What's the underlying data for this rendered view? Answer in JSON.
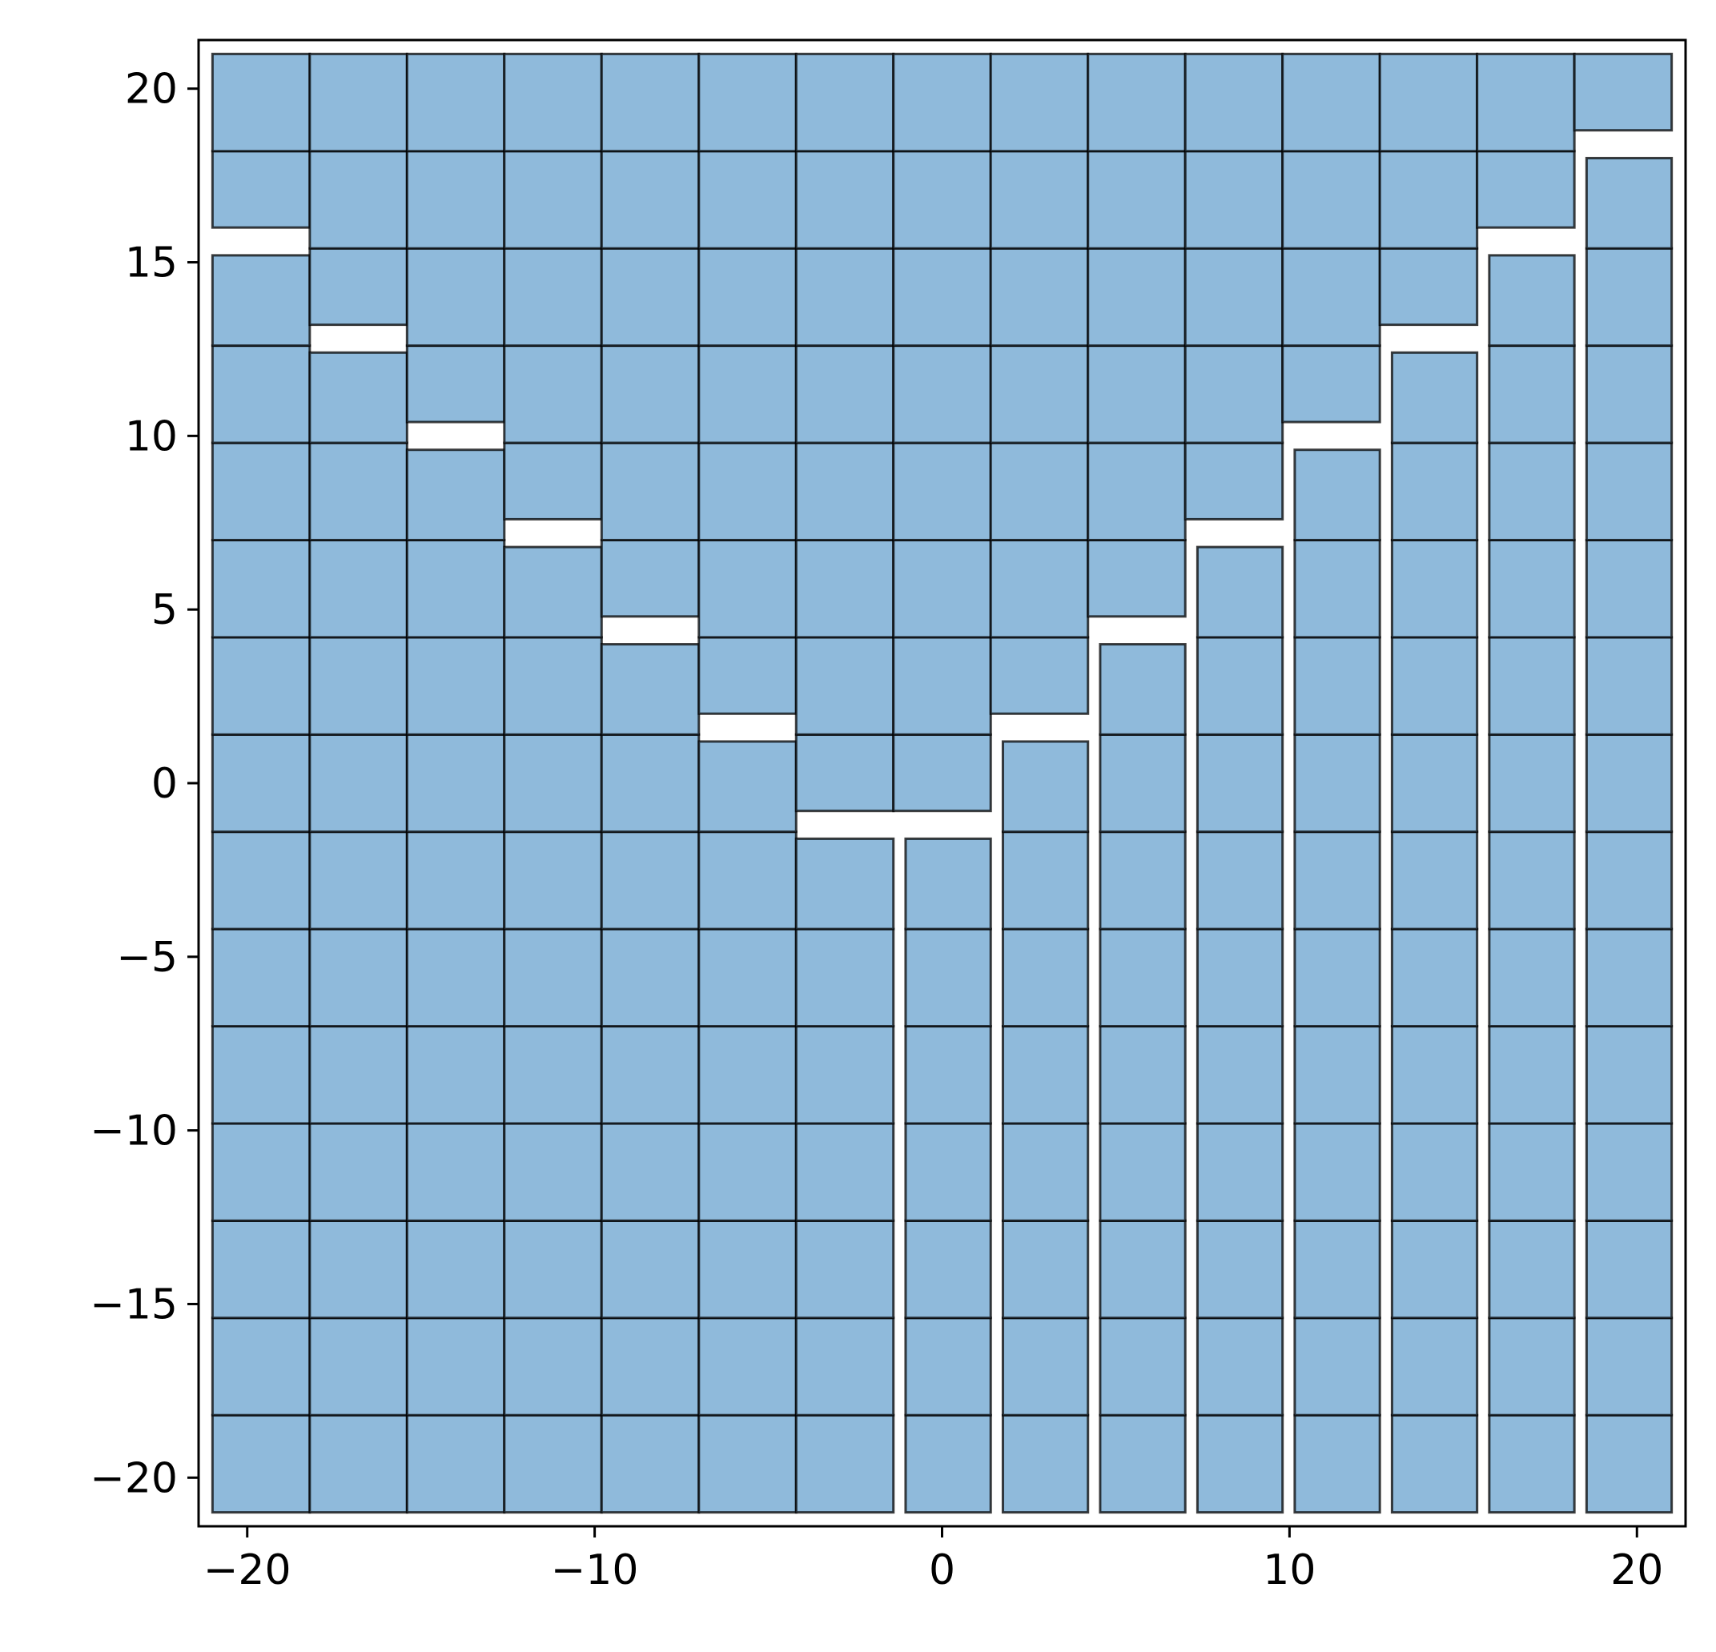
{
  "chart_data": {
    "type": "heatmap",
    "title": "",
    "xlabel": "",
    "ylabel": "",
    "xlim": [
      -21.4,
      21.4
    ],
    "ylim": [
      -21.4,
      21.4
    ],
    "xticks": [
      -20,
      -10,
      0,
      10,
      20
    ],
    "yticks": [
      -20,
      -15,
      -10,
      -5,
      0,
      5,
      10,
      15,
      20
    ],
    "xtick_labels": [
      "−20",
      "−10",
      "0",
      "10",
      "20"
    ],
    "ytick_labels": [
      "−20",
      "−15",
      "−10",
      "−5",
      "0",
      "5",
      "10",
      "15",
      "20"
    ],
    "grid": false,
    "legend": "none",
    "fill_color": "#8fbadb",
    "edge_color": "#000000",
    "background_color": "#ffffff",
    "cell_extent": [
      -21,
      21
    ],
    "cells_per_side": 15,
    "description": "",
    "left_half_top_row_boundaries": [
      15.2,
      12.4,
      9.6,
      6.8,
      4.0,
      1.2,
      -1.6
    ],
    "right_half_col_boundaries": [
      -4.6,
      -7.4,
      -10.2,
      -13.0,
      -15.8,
      -18.6
    ]
  }
}
